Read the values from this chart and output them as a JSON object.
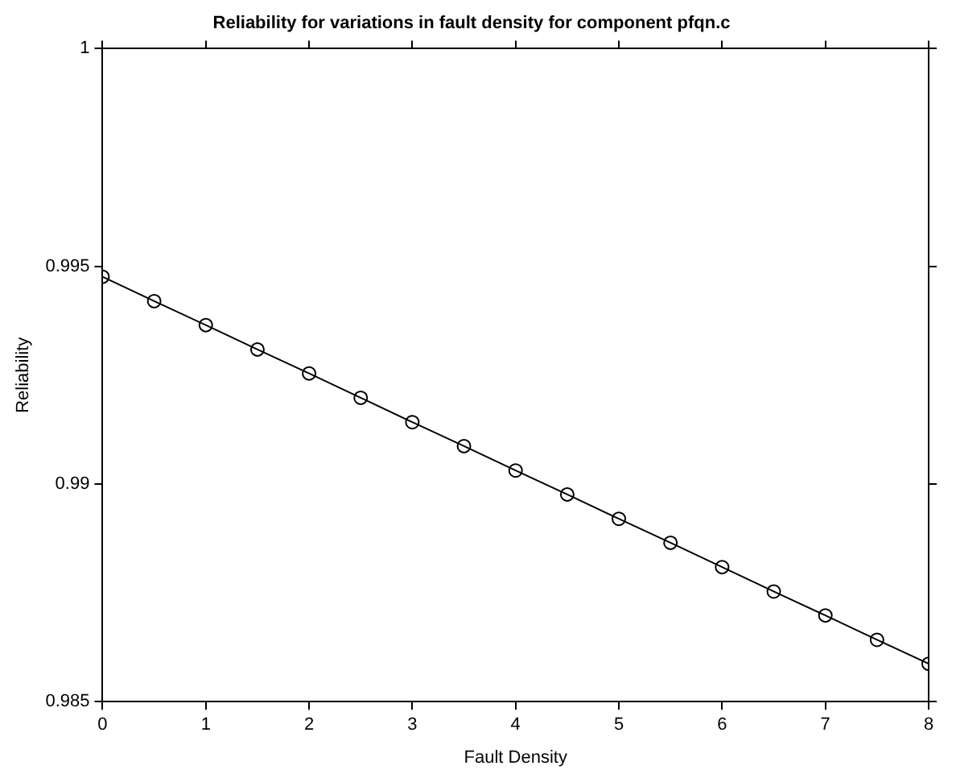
{
  "chart_data": {
    "type": "line",
    "title": "Reliability for variations in fault density for component pfqn.c",
    "xlabel": "Fault Density",
    "ylabel": "Reliability",
    "x": [
      0,
      0.5,
      1,
      1.5,
      2,
      2.5,
      3,
      3.5,
      4,
      4.5,
      5,
      5.5,
      6,
      6.5,
      7,
      7.5,
      8
    ],
    "series": [
      {
        "color": "#000000",
        "values": [
          0.99476,
          0.9942,
          0.99365,
          0.99309,
          0.99254,
          0.99198,
          0.99142,
          0.99087,
          0.99031,
          0.98976,
          0.9892,
          0.98865,
          0.98809,
          0.98753,
          0.98698,
          0.98642,
          0.98587
        ]
      }
    ],
    "xlim": [
      0,
      8
    ],
    "xticks": [
      0,
      1,
      2,
      3,
      4,
      5,
      6,
      7,
      8
    ],
    "ylim": [
      0.985,
      1
    ],
    "yticks": [
      0.985,
      0.99,
      0.995,
      1
    ],
    "grid": false,
    "legend": false,
    "marker": "circle",
    "line_style": "solid"
  }
}
